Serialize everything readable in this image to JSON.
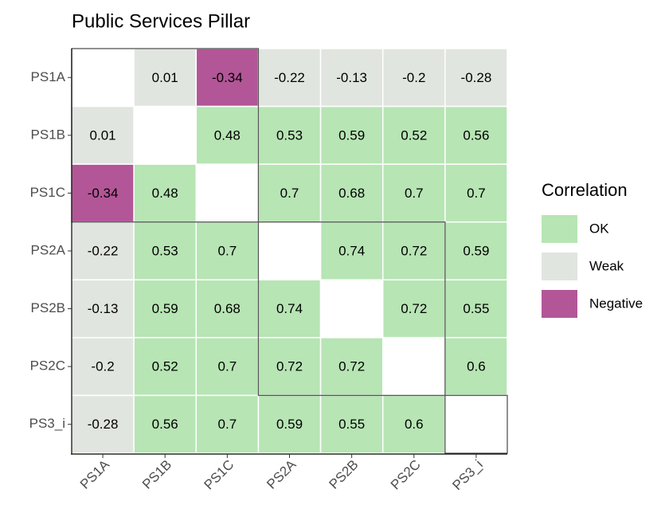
{
  "chart_data": {
    "type": "heatmap",
    "title": "Public Services Pillar",
    "x_categories": [
      "PS1A",
      "PS1B",
      "PS1C",
      "PS2A",
      "PS2B",
      "PS2C",
      "PS3_i"
    ],
    "y_categories": [
      "PS1A",
      "PS1B",
      "PS1C",
      "PS2A",
      "PS2B",
      "PS2C",
      "PS3_i"
    ],
    "values": [
      [
        null,
        0.01,
        -0.34,
        -0.22,
        -0.13,
        -0.2,
        -0.28
      ],
      [
        0.01,
        null,
        0.48,
        0.53,
        0.59,
        0.52,
        0.56
      ],
      [
        -0.34,
        0.48,
        null,
        0.7,
        0.68,
        0.7,
        0.7
      ],
      [
        -0.22,
        0.53,
        0.7,
        null,
        0.74,
        0.72,
        0.59
      ],
      [
        -0.13,
        0.59,
        0.68,
        0.74,
        null,
        0.72,
        0.55
      ],
      [
        -0.2,
        0.52,
        0.7,
        0.72,
        0.72,
        null,
        0.6
      ],
      [
        -0.28,
        0.56,
        0.7,
        0.59,
        0.55,
        0.6,
        null
      ]
    ],
    "classes": [
      [
        null,
        "Weak",
        "Negative",
        "Weak",
        "Weak",
        "Weak",
        "Weak"
      ],
      [
        "Weak",
        null,
        "OK",
        "OK",
        "OK",
        "OK",
        "OK"
      ],
      [
        "Negative",
        "OK",
        null,
        "OK",
        "OK",
        "OK",
        "OK"
      ],
      [
        "Weak",
        "OK",
        "OK",
        null,
        "OK",
        "OK",
        "OK"
      ],
      [
        "Weak",
        "OK",
        "OK",
        "OK",
        null,
        "OK",
        "OK"
      ],
      [
        "Weak",
        "OK",
        "OK",
        "OK",
        "OK",
        null,
        "OK"
      ],
      [
        "Weak",
        "OK",
        "OK",
        "OK",
        "OK",
        "OK",
        null
      ]
    ],
    "legend": {
      "title": "Correlation",
      "items": [
        {
          "name": "OK",
          "color": "#b7e5b4"
        },
        {
          "name": "Weak",
          "color": "#e1e5df"
        },
        {
          "name": "Negative",
          "color": "#b35697"
        }
      ]
    }
  }
}
